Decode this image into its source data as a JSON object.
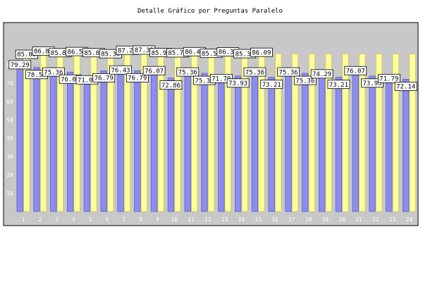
{
  "chart_data": {
    "type": "bar",
    "title": "Detalle Gráfico por Preguntas Paralelo",
    "xlabel": "",
    "ylabel": "",
    "ylim": [
      0,
      90
    ],
    "yticks": [
      10,
      20,
      30,
      40,
      50,
      60,
      70,
      80
    ],
    "categories": [
      "1",
      "2",
      "3",
      "4",
      "5",
      "6",
      "7",
      "8",
      "9",
      "10",
      "11",
      "12",
      "13",
      "14",
      "15",
      "16",
      "17",
      "18",
      "19",
      "20",
      "21",
      "22",
      "23",
      "24"
    ],
    "grid": false,
    "legend": "none",
    "series": [
      {
        "values": [
          79.29,
          78.57,
          75.36,
          76.07,
          71.07,
          76.79,
          76.43,
          76.79,
          76.07,
          72.86,
          75.36,
          75.36,
          71.79,
          73.93,
          75.36,
          73.21,
          75.36,
          75.36,
          74.29,
          73.21,
          76.07,
          73.93,
          71.79,
          72.14
        ]
      },
      {
        "values": [
          85.0,
          86.8,
          85.86,
          86.5,
          85.88,
          85.3,
          87.21,
          87.32,
          85.92,
          85.78,
          86.43,
          85.52,
          86.35,
          85.35,
          86.09,
          86.0,
          86.0,
          86.0,
          86.0,
          86.0,
          86.0,
          86.0,
          86.0,
          86.0
        ]
      }
    ],
    "data_labels": [
      {
        "text": "79.29",
        "series": 0,
        "index": 0
      },
      {
        "text": "85.00",
        "series": 1,
        "index": 0
      },
      {
        "text": "78.57",
        "series": 0,
        "index": 1
      },
      {
        "text": "86.80",
        "series": 1,
        "index": 1
      },
      {
        "text": "75.36",
        "series": 0,
        "index": 2
      },
      {
        "text": "85.86",
        "series": 1,
        "index": 2
      },
      {
        "text": "76.07",
        "series": 0,
        "index": 3
      },
      {
        "text": "86.50",
        "series": 1,
        "index": 3
      },
      {
        "text": "71.07",
        "series": 0,
        "index": 4
      },
      {
        "text": "85.88",
        "series": 1,
        "index": 4
      },
      {
        "text": "76.79",
        "series": 0,
        "index": 5
      },
      {
        "text": "85.30",
        "series": 1,
        "index": 5
      },
      {
        "text": "76.43",
        "series": 0,
        "index": 6
      },
      {
        "text": "87.21",
        "series": 1,
        "index": 6
      },
      {
        "text": "76.79",
        "series": 0,
        "index": 7
      },
      {
        "text": "87.32",
        "series": 1,
        "index": 7
      },
      {
        "text": "76.07",
        "series": 0,
        "index": 8
      },
      {
        "text": "85.92",
        "series": 1,
        "index": 8
      },
      {
        "text": "72.86",
        "series": 0,
        "index": 9
      },
      {
        "text": "85.78",
        "series": 1,
        "index": 9
      },
      {
        "text": "75.36",
        "series": 0,
        "index": 10
      },
      {
        "text": "86.43",
        "series": 1,
        "index": 10
      },
      {
        "text": "75.36",
        "series": 0,
        "index": 11
      },
      {
        "text": "85.52",
        "series": 1,
        "index": 11
      },
      {
        "text": "71.79",
        "series": 0,
        "index": 12
      },
      {
        "text": "86.35",
        "series": 1,
        "index": 12
      },
      {
        "text": "73.93",
        "series": 0,
        "index": 13
      },
      {
        "text": "85.35",
        "series": 1,
        "index": 13
      },
      {
        "text": "75.36",
        "series": 0,
        "index": 14
      },
      {
        "text": "86.09",
        "series": 1,
        "index": 14
      },
      {
        "text": "73.21",
        "series": 0,
        "index": 15
      },
      {
        "text": "75.36",
        "series": 0,
        "index": 16
      },
      {
        "text": "75.36",
        "series": 0,
        "index": 17
      },
      {
        "text": "74.29",
        "series": 0,
        "index": 18
      },
      {
        "text": "73.21",
        "series": 0,
        "index": 19
      },
      {
        "text": "76.07",
        "series": 0,
        "index": 20
      },
      {
        "text": "73.93",
        "series": 0,
        "index": 21
      },
      {
        "text": "71.79",
        "series": 0,
        "index": 22
      },
      {
        "text": "72.14",
        "series": 0,
        "index": 23
      }
    ]
  },
  "colors": {
    "series_a": "#8c8cf0",
    "series_a_edge": "#6060c0",
    "series_b": "#ffff99",
    "series_b_edge": "#c8c860",
    "plot_background": "#c8c8c8",
    "tick_text": "#ffffff",
    "label_box": "#ffffff"
  }
}
